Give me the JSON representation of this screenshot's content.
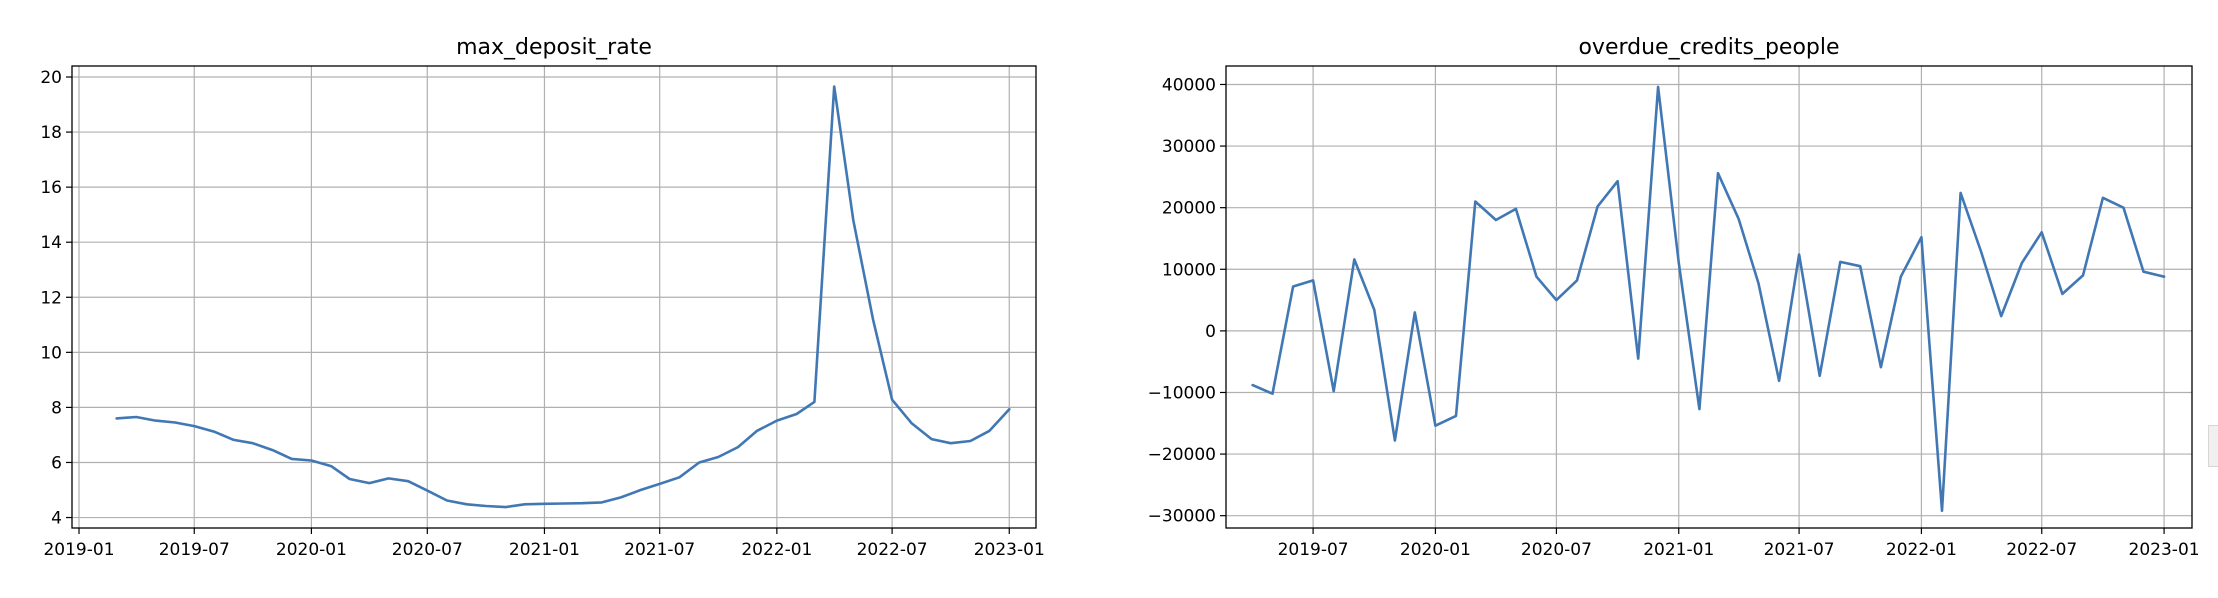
{
  "colors": {
    "line": "#4178b4",
    "grid": "#b0b0b0",
    "axis": "#000000"
  },
  "chart_data": [
    {
      "type": "line",
      "title": "max_deposit_rate",
      "xlabel": "",
      "ylabel": "",
      "grid": true,
      "x_ticks": [
        "2019-01",
        "2019-07",
        "2020-01",
        "2020-07",
        "2021-01",
        "2021-07",
        "2022-01",
        "2022-07",
        "2023-01"
      ],
      "y_ticks": [
        "4",
        "6",
        "8",
        "10",
        "12",
        "14",
        "16",
        "18",
        "20"
      ],
      "xlim": [
        "2018-12-21",
        "2023-02-12"
      ],
      "ylim": [
        3.62,
        20.4
      ],
      "series": [
        {
          "x": [
            "2019-03-01",
            "2019-04-01",
            "2019-05-01",
            "2019-06-01",
            "2019-07-01",
            "2019-08-01",
            "2019-09-01",
            "2019-10-01",
            "2019-11-01",
            "2019-12-01",
            "2020-01-01",
            "2020-02-01",
            "2020-03-01",
            "2020-04-01",
            "2020-05-01",
            "2020-06-01",
            "2020-07-01",
            "2020-08-01",
            "2020-09-01",
            "2020-10-01",
            "2020-11-01",
            "2020-12-01",
            "2021-01-01",
            "2021-02-01",
            "2021-03-01",
            "2021-04-01",
            "2021-05-01",
            "2021-06-01",
            "2021-07-01",
            "2021-08-01",
            "2021-09-01",
            "2021-10-01",
            "2021-11-01",
            "2021-12-01",
            "2022-01-01",
            "2022-02-01",
            "2022-03-01",
            "2022-04-01",
            "2022-05-01",
            "2022-06-01",
            "2022-07-01",
            "2022-08-01",
            "2022-09-01",
            "2022-10-01",
            "2022-11-01",
            "2022-12-01",
            "2023-01-01"
          ],
          "values": [
            7.6,
            7.65,
            7.52,
            7.45,
            7.32,
            7.12,
            6.82,
            6.7,
            6.45,
            6.13,
            6.07,
            5.87,
            5.4,
            5.25,
            5.42,
            5.32,
            4.98,
            4.62,
            4.48,
            4.42,
            4.38,
            4.48,
            4.5,
            4.51,
            4.52,
            4.55,
            4.73,
            5.0,
            5.22,
            5.46,
            6.0,
            6.2,
            6.56,
            7.15,
            7.52,
            7.76,
            8.2,
            19.65,
            14.8,
            11.2,
            8.28,
            7.42,
            6.85,
            6.7,
            6.78,
            7.15,
            7.93
          ]
        }
      ]
    },
    {
      "type": "line",
      "title": "overdue_credits_people",
      "xlabel": "",
      "ylabel": "",
      "grid": true,
      "x_ticks": [
        "2019-07",
        "2020-01",
        "2020-07",
        "2021-01",
        "2021-07",
        "2022-01",
        "2022-07",
        "2023-01"
      ],
      "y_ticks": [
        "−30000",
        "−20000",
        "−10000",
        "0",
        "10000",
        "20000",
        "30000",
        "40000"
      ],
      "xlim": [
        "2019-02-20",
        "2023-02-12"
      ],
      "ylim": [
        -32000,
        43000
      ],
      "series": [
        {
          "x": [
            "2019-04-01",
            "2019-05-01",
            "2019-06-01",
            "2019-07-01",
            "2019-08-01",
            "2019-09-01",
            "2019-10-01",
            "2019-11-01",
            "2019-12-01",
            "2020-01-01",
            "2020-02-01",
            "2020-03-01",
            "2020-04-01",
            "2020-05-01",
            "2020-06-01",
            "2020-07-01",
            "2020-08-01",
            "2020-09-01",
            "2020-10-01",
            "2020-11-01",
            "2020-12-01",
            "2021-01-01",
            "2021-02-01",
            "2021-03-01",
            "2021-04-01",
            "2021-05-01",
            "2021-06-01",
            "2021-07-01",
            "2021-08-01",
            "2021-09-01",
            "2021-10-01",
            "2021-11-01",
            "2021-12-01",
            "2022-01-01",
            "2022-02-01",
            "2022-03-01",
            "2022-04-01",
            "2022-05-01",
            "2022-06-01",
            "2022-07-01",
            "2022-08-01",
            "2022-09-01",
            "2022-10-01",
            "2022-11-01",
            "2022-12-01",
            "2023-01-01"
          ],
          "values": [
            -8800,
            -10200,
            7200,
            8200,
            -9800,
            11600,
            3400,
            -17800,
            3000,
            -15400,
            -13800,
            21000,
            18000,
            19800,
            8800,
            5000,
            8200,
            20200,
            24300,
            -4500,
            39600,
            11000,
            -12700,
            25600,
            18200,
            7700,
            -8100,
            12400,
            -7300,
            11200,
            10500,
            -5900,
            8800,
            15200,
            -29200,
            22400,
            12800,
            2400,
            11000,
            16000,
            6000,
            9000,
            21600,
            20000,
            9600,
            8800
          ]
        }
      ]
    }
  ]
}
